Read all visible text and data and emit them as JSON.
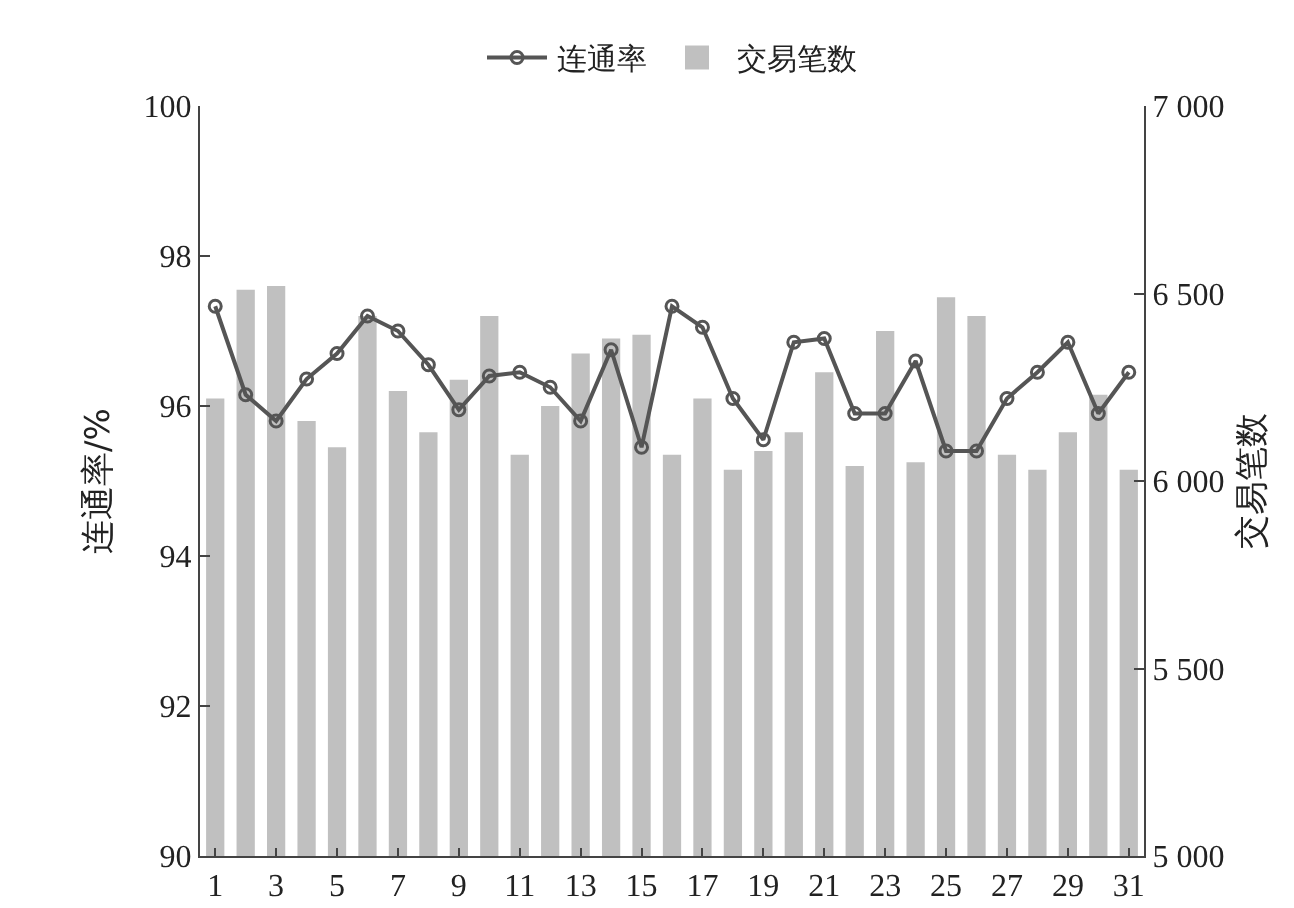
{
  "chart_data": {
    "type": "bar",
    "x": [
      1,
      2,
      3,
      4,
      5,
      6,
      7,
      8,
      9,
      10,
      11,
      12,
      13,
      14,
      15,
      16,
      17,
      18,
      19,
      20,
      21,
      22,
      23,
      24,
      25,
      26,
      27,
      28,
      29,
      30,
      31
    ],
    "series": [
      {
        "name": "连通率",
        "type": "line",
        "color": "#555555",
        "marker": "circle",
        "values": [
          97.33,
          96.15,
          95.8,
          96.36,
          96.7,
          97.2,
          97.0,
          96.55,
          95.95,
          96.4,
          96.45,
          96.25,
          95.8,
          96.75,
          95.45,
          97.33,
          97.05,
          96.1,
          95.55,
          96.85,
          96.9,
          95.9,
          95.9,
          96.6,
          95.4,
          95.4,
          96.1,
          96.45,
          96.85,
          95.9,
          96.45
        ]
      },
      {
        "name": "交易笔数",
        "axis": "y2",
        "color": "#c0c0c0",
        "values": [
          6220,
          6510,
          6520,
          6160,
          6090,
          6440,
          6240,
          6130,
          6270,
          6440,
          6070,
          6200,
          6340,
          6380,
          6390,
          6070,
          6220,
          6030,
          6080,
          6130,
          6290,
          6040,
          6400,
          6050,
          6490,
          6440,
          6070,
          6030,
          6130,
          6230,
          6030
        ]
      }
    ],
    "ylabel": "连通率/%",
    "y2label": "交易笔数",
    "xlim": [
      0.5,
      31.5
    ],
    "xticks": [
      1,
      3,
      5,
      7,
      9,
      11,
      13,
      15,
      17,
      19,
      21,
      23,
      25,
      27,
      29,
      31
    ],
    "ylim": [
      90,
      100
    ],
    "yticks": [
      90,
      92,
      94,
      96,
      98,
      100
    ],
    "y2lim": [
      5000,
      7000
    ],
    "y2ticks": [
      {
        "value": 5000,
        "label": "5 000"
      },
      {
        "value": 5500,
        "label": "5 500"
      },
      {
        "value": 6000,
        "label": "6 000"
      },
      {
        "value": 6500,
        "label": "6 500"
      },
      {
        "value": 7000,
        "label": "7 000"
      }
    ],
    "legend": "top",
    "grid": false
  }
}
